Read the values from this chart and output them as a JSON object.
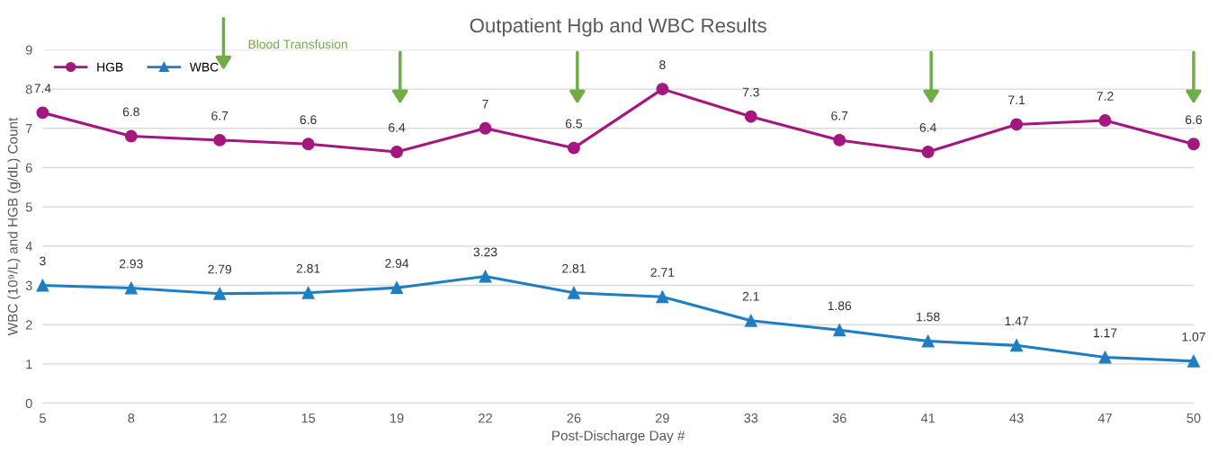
{
  "chart_data": {
    "type": "line",
    "title": "Outpatient Hgb and WBC Results",
    "xlabel": "Post-Discharge Day #",
    "ylabel": "WBC (10⁹/L) and HGB (g/dL) Count",
    "categories": [
      "5",
      "8",
      "12",
      "15",
      "19",
      "22",
      "26",
      "29",
      "33",
      "36",
      "41",
      "43",
      "47",
      "50"
    ],
    "series": [
      {
        "name": "HGB",
        "color": "#a3177f",
        "marker": "circle",
        "values": [
          7.4,
          6.8,
          6.7,
          6.6,
          6.4,
          7,
          6.5,
          8,
          7.3,
          6.7,
          6.4,
          7.1,
          7.2,
          6.6
        ]
      },
      {
        "name": "WBC",
        "color": "#1f7ec2",
        "marker": "triangle",
        "values": [
          3,
          2.93,
          2.79,
          2.81,
          2.94,
          3.23,
          2.81,
          2.71,
          2.1,
          1.86,
          1.58,
          1.47,
          1.17,
          1.07
        ]
      }
    ],
    "ylim": [
      0,
      9
    ],
    "yticks": [
      0,
      1,
      2,
      3,
      4,
      5,
      6,
      7,
      8,
      9
    ],
    "grid": "y",
    "legend": "top left",
    "data_labels": true,
    "line_style": "solid",
    "annotations": [
      "Blood Transfusion"
    ]
  }
}
